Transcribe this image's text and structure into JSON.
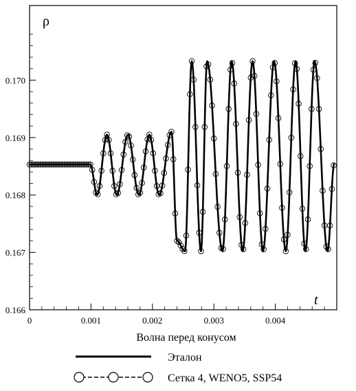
{
  "chart_data": {
    "type": "line",
    "title": "",
    "xlabel": "t",
    "ylabel": "ρ",
    "caption": "Волна перед конусом",
    "xlim": [
      0,
      0.005
    ],
    "ylim": [
      0.166,
      0.1713
    ],
    "x_ticks": [
      {
        "value": 0,
        "label": "0"
      },
      {
        "value": 0.001,
        "label": "0.001"
      },
      {
        "value": 0.002,
        "label": "0.002"
      },
      {
        "value": 0.003,
        "label": "0.003"
      },
      {
        "value": 0.004,
        "label": "0.004"
      }
    ],
    "y_ticks": [
      {
        "value": 0.166,
        "label": "0.166"
      },
      {
        "value": 0.167,
        "label": "0.167"
      },
      {
        "value": 0.168,
        "label": "0.168"
      },
      {
        "value": 0.169,
        "label": "0.169"
      },
      {
        "value": 0.17,
        "label": "0.170"
      }
    ],
    "grid": false,
    "legend_position": "bottom",
    "series": [
      {
        "name": "Эталон",
        "style": "solid-thick",
        "color": "#000000",
        "points": [
          [
            0,
            0.16853
          ],
          [
            0.00099,
            0.16853
          ],
          [
            0.0011,
            0.168
          ],
          [
            0.00126,
            0.16905
          ],
          [
            0.00142,
            0.168
          ],
          [
            0.0016,
            0.16905
          ],
          [
            0.00178,
            0.168
          ],
          [
            0.00195,
            0.16905
          ],
          [
            0.00211,
            0.168
          ],
          [
            0.00231,
            0.1691
          ],
          [
            0.0024,
            0.1672
          ],
          [
            0.00253,
            0.16702
          ],
          [
            0.00264,
            0.17033
          ],
          [
            0.00279,
            0.16702
          ],
          [
            0.00289,
            0.17033
          ],
          [
            0.00314,
            0.16702
          ],
          [
            0.00329,
            0.17033
          ],
          [
            0.00347,
            0.16702
          ],
          [
            0.00363,
            0.17033
          ],
          [
            0.0038,
            0.16702
          ],
          [
            0.00398,
            0.17033
          ],
          [
            0.00417,
            0.16702
          ],
          [
            0.00433,
            0.17033
          ],
          [
            0.00449,
            0.16702
          ],
          [
            0.00464,
            0.17033
          ],
          [
            0.00485,
            0.16702
          ],
          [
            0.00496,
            0.16855
          ]
        ]
      },
      {
        "name": "Сетка 4, WENO5, SSP54",
        "style": "dashed-circles",
        "color": "#000000",
        "points": [
          [
            0,
            0.16853
          ],
          [
            0.00099,
            0.16853
          ],
          [
            0.0011,
            0.168
          ],
          [
            0.00126,
            0.16905
          ],
          [
            0.00142,
            0.168
          ],
          [
            0.0016,
            0.16905
          ],
          [
            0.00178,
            0.168
          ],
          [
            0.00195,
            0.16905
          ],
          [
            0.00211,
            0.168
          ],
          [
            0.00231,
            0.1691
          ],
          [
            0.0024,
            0.1672
          ],
          [
            0.00253,
            0.16702
          ],
          [
            0.00264,
            0.17033
          ],
          [
            0.00279,
            0.16702
          ],
          [
            0.00289,
            0.17033
          ],
          [
            0.00314,
            0.16702
          ],
          [
            0.00329,
            0.17033
          ],
          [
            0.00347,
            0.16702
          ],
          [
            0.00363,
            0.17033
          ],
          [
            0.0038,
            0.16702
          ],
          [
            0.00398,
            0.17033
          ],
          [
            0.00417,
            0.16702
          ],
          [
            0.00433,
            0.17033
          ],
          [
            0.00449,
            0.16702
          ],
          [
            0.00464,
            0.17033
          ],
          [
            0.00485,
            0.16702
          ],
          [
            0.00496,
            0.16855
          ]
        ]
      }
    ]
  }
}
